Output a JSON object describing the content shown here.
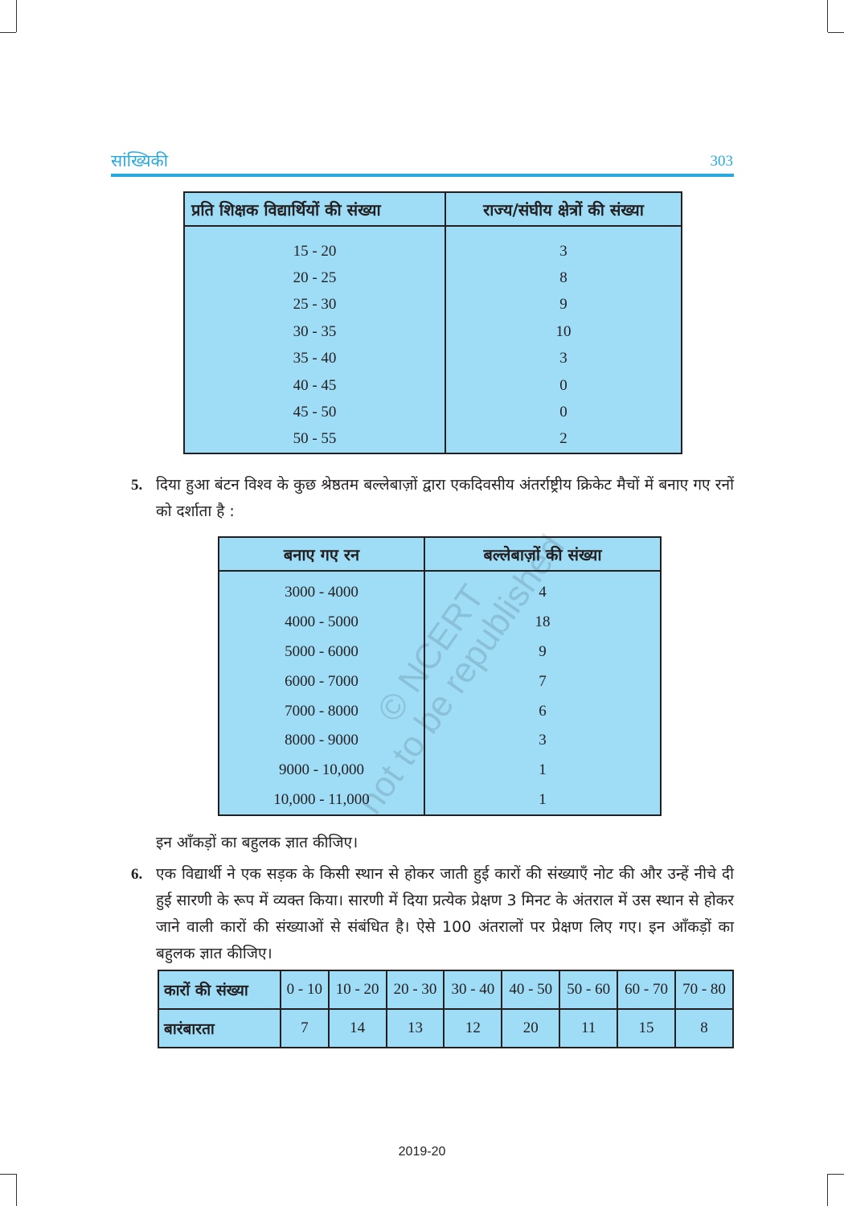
{
  "header": {
    "title": "सांख्यिकी",
    "page_number": "303"
  },
  "table1": {
    "headers": [
      "प्रति शिक्षक विद्यार्थियों की संख्या",
      "राज्य/संघीय क्षेत्रों की संख्या"
    ],
    "rows": [
      [
        "15 - 20",
        "3"
      ],
      [
        "20 - 25",
        "8"
      ],
      [
        "25 - 30",
        "9"
      ],
      [
        "30 - 35",
        "10"
      ],
      [
        "35 - 40",
        "3"
      ],
      [
        "40 - 45",
        "0"
      ],
      [
        "45 - 50",
        "0"
      ],
      [
        "50 - 55",
        "2"
      ]
    ]
  },
  "question5": {
    "number": "5.",
    "text": "दिया हुआ बंटन विश्व के कुछ श्रेष्ठतम बल्लेबाज़ों द्वारा एकदिवसीय अंतर्राष्ट्रीय क्रिकेट मैचों में बनाए गए रनों को दर्शाता है :",
    "table": {
      "headers": [
        "बनाए गए रन",
        "बल्लेबाज़ों की संख्या"
      ],
      "rows": [
        [
          "3000 - 4000",
          "4"
        ],
        [
          "4000 - 5000",
          "18"
        ],
        [
          "5000 - 6000",
          "9"
        ],
        [
          "6000 - 7000",
          "7"
        ],
        [
          "7000 - 8000",
          "6"
        ],
        [
          "8000 - 9000",
          "3"
        ],
        [
          "9000 - 10,000",
          "1"
        ],
        [
          "10,000 - 11,000",
          "1"
        ]
      ]
    },
    "followup": "इन आँकड़ों का बहुलक ज्ञात कीजिए।"
  },
  "question6": {
    "number": "6.",
    "text": "एक विद्यार्थी ने एक सड़क के किसी स्थान से होकर जाती हुई कारों की संख्याएँ नोट की और उन्हें नीचे दी हुई सारणी के रूप में व्यक्त किया। सारणी में दिया प्रत्येक प्रेक्षण 3 मिनट के अंतराल में उस स्थान से होकर जाने वाली कारों की संख्याओं से संबंधित है। ऐसे 100 अंतरालों पर प्रेक्षण लिए गए। इन आँकड़ों का बहुलक ज्ञात कीजिए।",
    "table": {
      "row_label_1": "कारों की संख्या",
      "row_label_2": "बारंबारता",
      "classes": [
        "0 - 10",
        "10 - 20",
        "20 - 30",
        "30 - 40",
        "40 - 50",
        "50 - 60",
        "60 - 70",
        "70 - 80"
      ],
      "frequencies": [
        "7",
        "14",
        "13",
        "12",
        "20",
        "11",
        "15",
        "8"
      ]
    }
  },
  "watermark": "© NCERT not to be republished",
  "footer": "2019-20",
  "colors": {
    "accent": "#29a8df",
    "table_fill": "#9fdcf6"
  }
}
